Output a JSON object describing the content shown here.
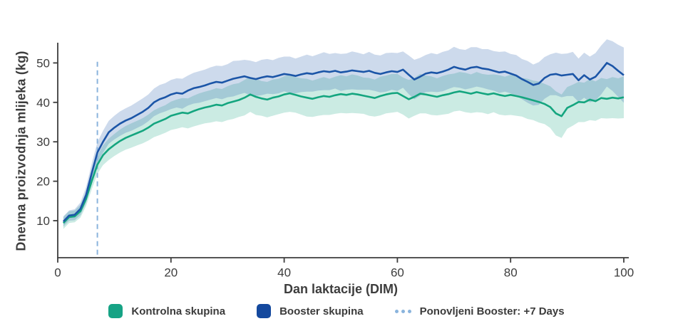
{
  "axes": {
    "ylabel": "Dnevna proizvodnja mlijeka (kg)",
    "xlabel": "Dan laktacije (DIM)",
    "xticks": [
      0,
      20,
      40,
      60,
      80,
      100
    ],
    "yticks": [
      10,
      20,
      30,
      40,
      50
    ],
    "axis_color": "#3d3d3d",
    "tick_label_color": "#3d3d3d"
  },
  "legend": {
    "items": [
      {
        "label": "Kontrolna skupina",
        "marker": "square",
        "color": "#16a385"
      },
      {
        "label": "Booster skupina",
        "marker": "square",
        "color": "#14499e"
      },
      {
        "label": "Ponovljeni Booster: +7 Days",
        "marker": "dotted-line",
        "color": "#8ab4dd"
      }
    ]
  },
  "chart_data": {
    "type": "line",
    "title": "",
    "xlabel": "Dan laktacije (DIM)",
    "ylabel": "Dnevna proizvodnja mlijeka (kg)",
    "xlim": [
      0,
      100
    ],
    "xticks": [
      0,
      20,
      40,
      60,
      80,
      100
    ],
    "yticks": [
      10,
      20,
      30,
      40,
      50
    ],
    "grid": false,
    "legend_position": "bottom",
    "x_days_start": 1,
    "x_days_end": 100,
    "x_step": 1,
    "event_line": {
      "x": 7,
      "label": "Ponovljeni Booster: +7 Days",
      "color": "#8ab4dd",
      "style": "dashed"
    },
    "series": [
      {
        "name": "Kontrolna skupina",
        "line_color": "#14a57f",
        "band_color": "#14a57f",
        "band_opacity": 0.22,
        "values": [
          9.4,
          10.9,
          11.1,
          12.4,
          15.5,
          20.0,
          24.2,
          26.6,
          28.1,
          29.2,
          30.2,
          31.0,
          31.6,
          32.2,
          32.8,
          33.6,
          34.6,
          35.2,
          35.8,
          36.6,
          37.0,
          37.4,
          37.2,
          37.8,
          38.3,
          38.7,
          39.0,
          39.4,
          39.2,
          39.8,
          40.2,
          40.6,
          41.2,
          42.0,
          41.4,
          41.0,
          40.7,
          41.2,
          41.5,
          42.0,
          42.3,
          41.9,
          41.5,
          41.2,
          40.9,
          41.3,
          41.6,
          41.4,
          41.8,
          42.1,
          41.9,
          42.2,
          42.0,
          41.7,
          41.4,
          41.1,
          41.6,
          42.0,
          42.3,
          42.4,
          41.6,
          40.8,
          41.4,
          42.2,
          42.0,
          41.7,
          41.4,
          41.8,
          42.1,
          42.5,
          42.8,
          42.5,
          42.2,
          42.6,
          42.3,
          42.0,
          42.3,
          41.9,
          41.6,
          41.9,
          41.6,
          41.3,
          40.9,
          40.5,
          40.1,
          39.6,
          38.8,
          37.2,
          36.5,
          38.6,
          39.3,
          40.1,
          40.0,
          40.7,
          40.3,
          41.1,
          40.9,
          41.2,
          41.0,
          41.3
        ],
        "band_halfwidth": [
          1.5,
          1.5,
          1.5,
          1.6,
          1.8,
          2.1,
          2.3,
          2.5,
          2.7,
          2.8,
          2.9,
          3.0,
          3.1,
          3.1,
          3.2,
          3.3,
          3.4,
          3.5,
          3.5,
          3.6,
          3.7,
          3.7,
          3.8,
          3.9,
          4.0,
          4.0,
          4.1,
          4.2,
          4.2,
          4.3,
          4.4,
          4.3,
          4.5,
          4.4,
          4.6,
          4.4,
          4.5,
          4.6,
          4.5,
          4.6,
          4.7,
          4.5,
          4.6,
          4.8,
          4.6,
          4.7,
          4.8,
          4.6,
          4.7,
          4.8,
          4.7,
          4.9,
          4.8,
          4.6,
          4.8,
          4.7,
          4.9,
          4.8,
          4.9,
          4.8,
          4.7,
          4.9,
          4.8,
          5.0,
          4.8,
          4.9,
          4.7,
          4.9,
          5.0,
          4.8,
          4.9,
          5.0,
          4.9,
          5.1,
          4.9,
          5.0,
          4.8,
          5.0,
          4.9,
          5.1,
          5.0,
          4.9,
          5.1,
          5.0,
          5.2,
          5.1,
          5.3,
          5.6,
          5.5,
          5.3,
          5.2,
          5.1,
          5.0,
          5.2,
          5.0,
          5.1,
          5.0,
          5.2,
          5.1,
          5.3
        ]
      },
      {
        "name": "Booster skupina",
        "line_color": "#1b55a7",
        "band_color": "#1b55a7",
        "band_opacity": 0.22,
        "values": [
          9.8,
          11.3,
          11.5,
          13.0,
          16.5,
          22.0,
          27.3,
          30.0,
          32.4,
          33.6,
          34.6,
          35.4,
          36.0,
          36.8,
          37.6,
          38.6,
          40.0,
          40.8,
          41.3,
          42.0,
          42.4,
          42.2,
          43.0,
          43.6,
          43.9,
          44.3,
          44.8,
          45.2,
          45.0,
          45.5,
          46.0,
          46.3,
          46.6,
          46.2,
          45.9,
          46.3,
          46.6,
          46.4,
          46.8,
          47.2,
          47.0,
          46.7,
          47.1,
          47.4,
          47.2,
          47.6,
          47.9,
          47.7,
          48.0,
          47.6,
          47.8,
          48.1,
          47.9,
          47.7,
          48.0,
          47.5,
          47.2,
          47.6,
          47.9,
          47.7,
          48.3,
          47.0,
          45.8,
          46.5,
          47.3,
          47.6,
          47.4,
          47.8,
          48.3,
          49.0,
          48.6,
          48.3,
          48.8,
          49.0,
          48.6,
          48.4,
          48.0,
          47.6,
          47.8,
          47.3,
          46.8,
          45.9,
          45.2,
          44.4,
          44.8,
          46.2,
          47.0,
          47.2,
          46.8,
          47.0,
          47.2,
          45.6,
          46.9,
          45.8,
          46.5,
          48.2,
          50.0,
          49.2,
          48.0,
          46.9
        ],
        "band_halfwidth": [
          1.3,
          1.3,
          1.4,
          1.6,
          2.0,
          2.4,
          2.6,
          2.8,
          2.9,
          3.0,
          3.1,
          3.1,
          3.2,
          3.3,
          3.4,
          3.4,
          3.5,
          3.6,
          3.6,
          3.7,
          3.7,
          3.8,
          3.8,
          3.9,
          4.0,
          4.0,
          4.1,
          4.1,
          4.2,
          4.2,
          4.5,
          4.3,
          4.2,
          4.4,
          4.3,
          4.5,
          4.4,
          4.3,
          4.5,
          4.4,
          4.6,
          4.4,
          4.5,
          4.7,
          4.5,
          4.6,
          4.8,
          4.6,
          4.5,
          4.7,
          4.6,
          4.8,
          4.7,
          4.5,
          4.8,
          4.6,
          4.7,
          4.9,
          4.7,
          4.8,
          4.6,
          4.9,
          5.0,
          4.8,
          4.7,
          4.9,
          4.8,
          5.0,
          4.9,
          5.1,
          4.9,
          5.0,
          5.2,
          5.0,
          4.9,
          5.1,
          5.0,
          5.2,
          5.1,
          5.0,
          5.2,
          5.1,
          5.3,
          5.2,
          5.4,
          5.3,
          5.2,
          5.4,
          5.5,
          5.4,
          5.6,
          5.5,
          5.7,
          5.8,
          6.0,
          6.2,
          6.0,
          6.3,
          6.6,
          7.0
        ]
      }
    ]
  }
}
